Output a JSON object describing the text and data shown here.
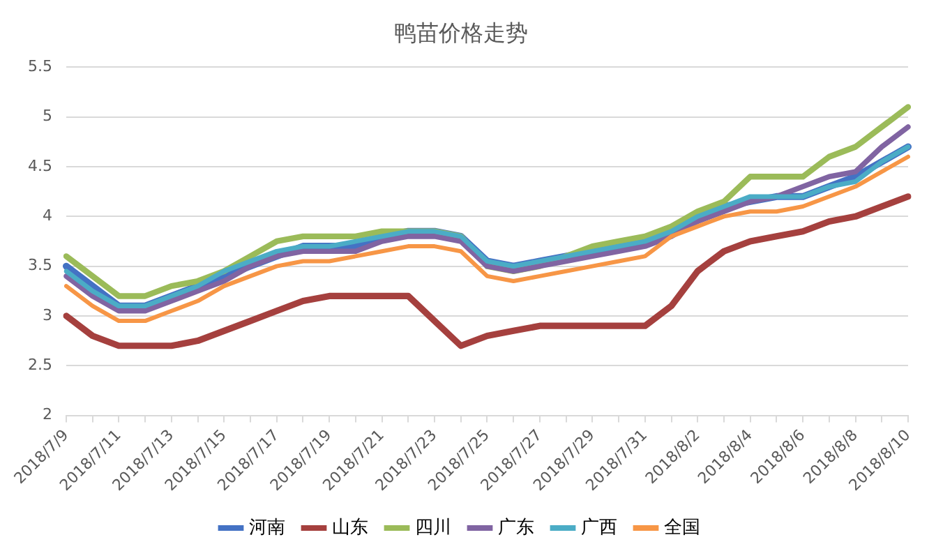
{
  "chart_data": {
    "type": "line",
    "title": "鸭苗价格走势",
    "categories": [
      "2018/7/9",
      null,
      "2018/7/11",
      null,
      "2018/7/13",
      null,
      "2018/7/15",
      null,
      "2018/7/17",
      null,
      "2018/7/19",
      null,
      "2018/7/21",
      null,
      "2018/7/23",
      null,
      "2018/7/25",
      null,
      "2018/7/27",
      null,
      "2018/7/29",
      null,
      "2018/7/31",
      null,
      "2018/8/2",
      null,
      "2018/8/4",
      null,
      "2018/8/6",
      null,
      "2018/8/8",
      null,
      "2018/8/10"
    ],
    "series": [
      {
        "name": "河南",
        "color": "#4472c4",
        "values": [
          3.5,
          3.3,
          3.1,
          3.1,
          3.2,
          3.3,
          3.4,
          3.5,
          3.6,
          3.7,
          3.7,
          3.7,
          3.8,
          3.85,
          3.85,
          3.8,
          3.55,
          3.5,
          3.55,
          3.6,
          3.65,
          3.7,
          3.75,
          3.85,
          4.0,
          4.1,
          4.15,
          4.2,
          4.2,
          4.3,
          4.4,
          4.55,
          4.7
        ]
      },
      {
        "name": "山东",
        "color": "#a5403e",
        "values": [
          3.0,
          2.8,
          2.7,
          2.7,
          2.7,
          2.75,
          2.85,
          2.95,
          3.05,
          3.15,
          3.2,
          3.2,
          3.2,
          3.2,
          2.95,
          2.7,
          2.8,
          2.85,
          2.9,
          2.9,
          2.9,
          2.9,
          2.9,
          3.1,
          3.45,
          3.65,
          3.75,
          3.8,
          3.85,
          3.95,
          4.0,
          4.1,
          4.2
        ]
      },
      {
        "name": "四川",
        "color": "#9bbb59",
        "values": [
          3.6,
          3.4,
          3.2,
          3.2,
          3.3,
          3.35,
          3.45,
          3.6,
          3.75,
          3.8,
          3.8,
          3.8,
          3.85,
          3.85,
          3.85,
          3.8,
          3.5,
          3.45,
          3.5,
          3.6,
          3.7,
          3.75,
          3.8,
          3.9,
          4.05,
          4.15,
          4.4,
          4.4,
          4.4,
          4.6,
          4.7,
          4.9,
          5.1
        ]
      },
      {
        "name": "广东",
        "color": "#8064a2",
        "values": [
          3.4,
          3.2,
          3.05,
          3.05,
          3.15,
          3.25,
          3.35,
          3.5,
          3.6,
          3.65,
          3.65,
          3.65,
          3.75,
          3.8,
          3.8,
          3.75,
          3.5,
          3.45,
          3.5,
          3.55,
          3.6,
          3.65,
          3.7,
          3.8,
          3.95,
          4.05,
          4.15,
          4.2,
          4.3,
          4.4,
          4.45,
          4.7,
          4.9
        ]
      },
      {
        "name": "广西",
        "color": "#4bacc6",
        "values": [
          3.45,
          3.25,
          3.1,
          3.1,
          3.2,
          3.3,
          3.45,
          3.55,
          3.65,
          3.7,
          3.7,
          3.75,
          3.8,
          3.85,
          3.85,
          3.8,
          3.55,
          3.5,
          3.55,
          3.6,
          3.65,
          3.7,
          3.75,
          3.85,
          4.0,
          4.1,
          4.2,
          4.2,
          4.2,
          4.3,
          4.35,
          4.55,
          4.7
        ]
      },
      {
        "name": "全国",
        "color": "#f79646",
        "values": [
          3.3,
          3.1,
          2.95,
          2.95,
          3.05,
          3.15,
          3.3,
          3.4,
          3.5,
          3.55,
          3.55,
          3.6,
          3.65,
          3.7,
          3.7,
          3.65,
          3.4,
          3.35,
          3.4,
          3.45,
          3.5,
          3.55,
          3.6,
          3.8,
          3.9,
          4.0,
          4.05,
          4.05,
          4.1,
          4.2,
          4.3,
          4.45,
          4.6
        ]
      }
    ],
    "ylim": [
      2,
      5.5
    ],
    "yticks": [
      2,
      2.5,
      3,
      3.5,
      4,
      4.5,
      5,
      5.5
    ],
    "grid": "y",
    "legend": "bottom",
    "marker": "none",
    "line_style": "solid"
  }
}
